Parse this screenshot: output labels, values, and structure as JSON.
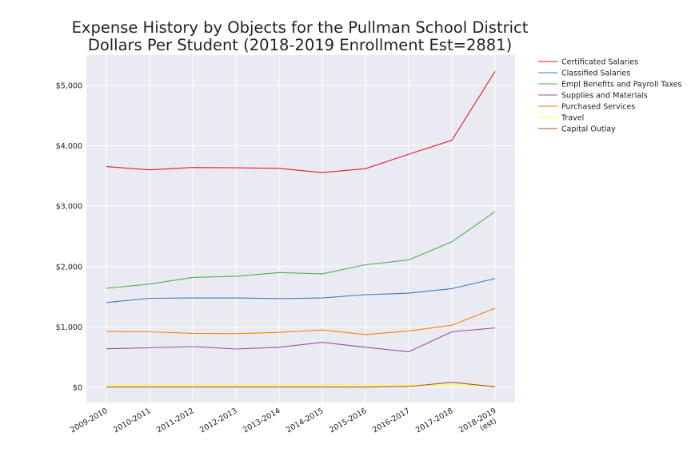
{
  "chart_data": {
    "type": "line",
    "title": "Expense History by Objects for the Pullman School District",
    "subtitle": "Dollars Per Student (2018-2019 Enrollment Est=2881)",
    "xlabel": "",
    "ylabel": "",
    "categories": [
      "2009-2010",
      "2010-2011",
      "2011-2012",
      "2012-2013",
      "2013-2014",
      "2014-2015",
      "2015-2016",
      "2016-2017",
      "2017-2018",
      "2018-2019\n(est)"
    ],
    "ylim": [
      -250,
      5500
    ],
    "yticks": [
      0,
      1000,
      2000,
      3000,
      4000,
      5000
    ],
    "ytick_labels": [
      "$0",
      "$1,000",
      "$2,000",
      "$3,000",
      "$4,000",
      "$5,000"
    ],
    "grid": true,
    "legend_position": "outside-top-right",
    "series": [
      {
        "name": "Certificated Salaries",
        "color": "#e41a1c",
        "values": [
          3655,
          3600,
          3640,
          3635,
          3625,
          3555,
          3620,
          3860,
          4090,
          5230
        ]
      },
      {
        "name": "Classified Salaries",
        "color": "#377eb8",
        "values": [
          1405,
          1475,
          1480,
          1480,
          1470,
          1480,
          1535,
          1560,
          1635,
          1800
        ]
      },
      {
        "name": "Empl Benefits and Payroll Taxes",
        "color": "#4daf4a",
        "values": [
          1640,
          1710,
          1820,
          1840,
          1900,
          1880,
          2030,
          2110,
          2410,
          2910
        ]
      },
      {
        "name": "Supplies and Materials",
        "color": "#984ea3",
        "values": [
          640,
          655,
          675,
          635,
          665,
          745,
          665,
          590,
          920,
          985
        ]
      },
      {
        "name": "Purchased Services",
        "color": "#ff7f00",
        "values": [
          925,
          920,
          895,
          890,
          910,
          950,
          875,
          935,
          1030,
          1310
        ]
      },
      {
        "name": "Travel",
        "color": "#ffff33",
        "values": [
          40,
          40,
          40,
          40,
          40,
          40,
          38,
          35,
          40,
          20
        ]
      },
      {
        "name": "Capital Outlay",
        "color": "#a65628",
        "values": [
          5,
          5,
          5,
          5,
          5,
          5,
          5,
          15,
          85,
          10
        ]
      }
    ]
  }
}
